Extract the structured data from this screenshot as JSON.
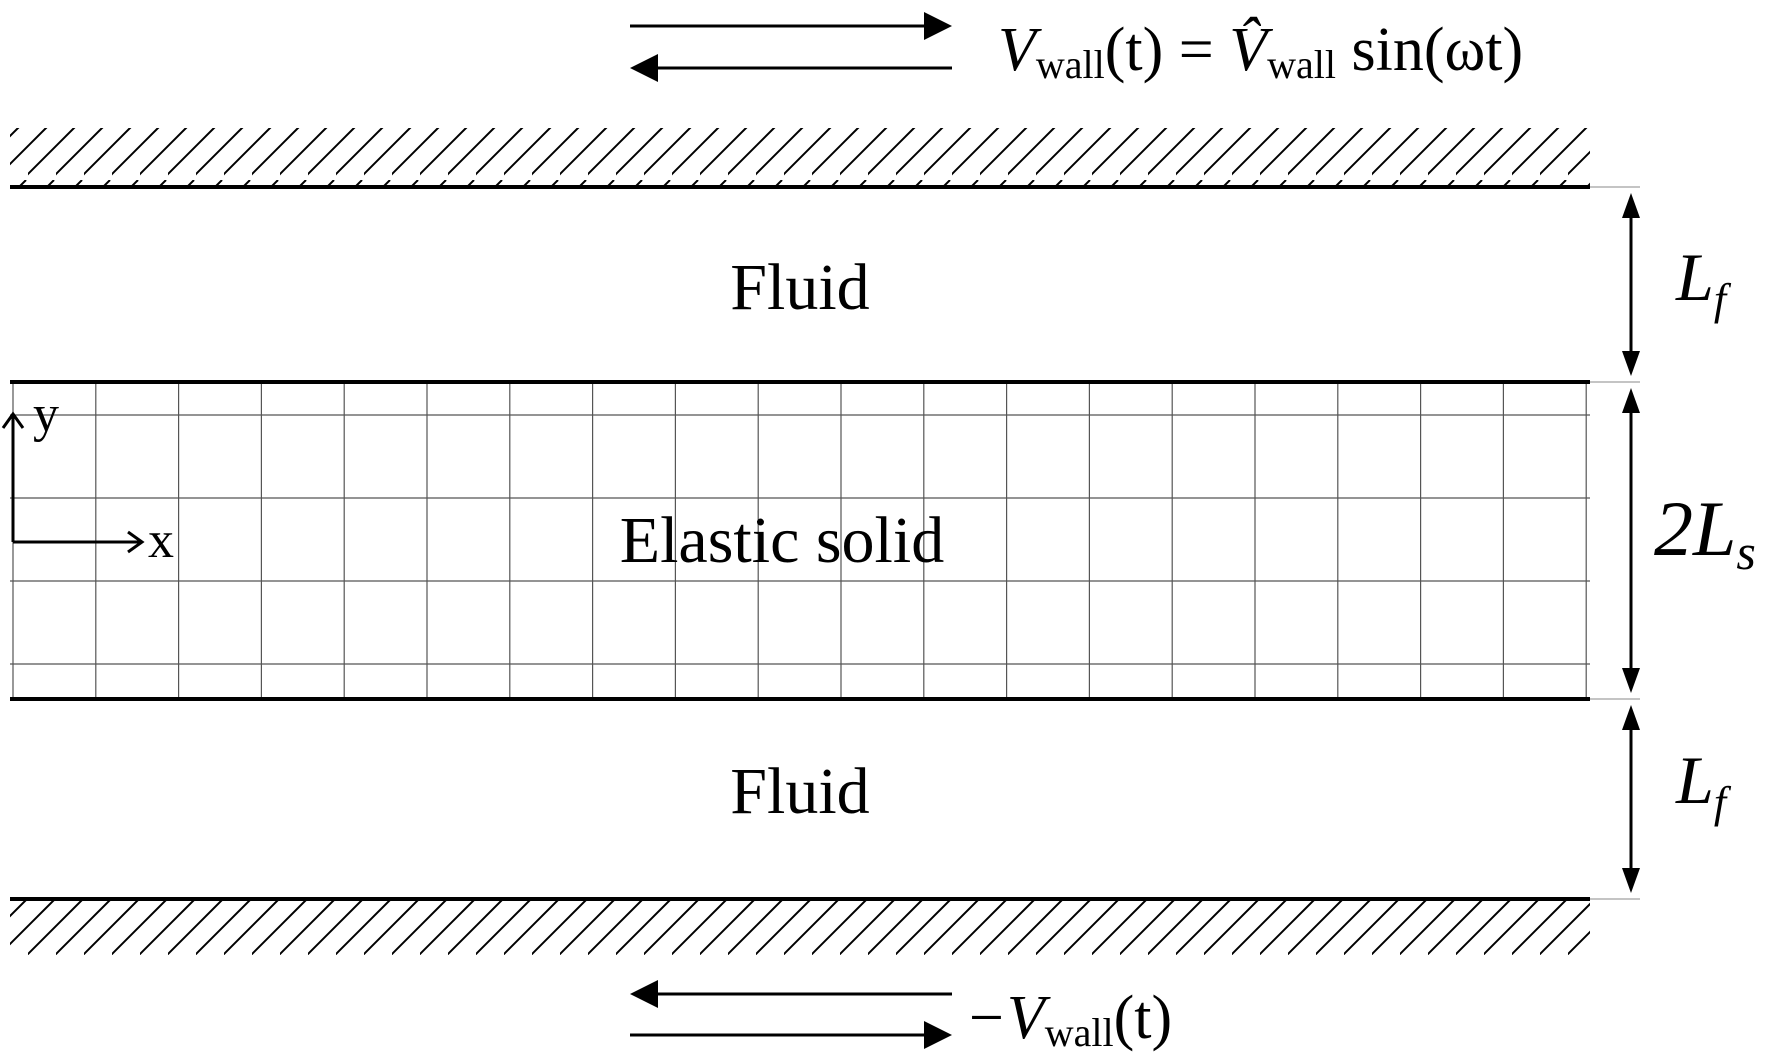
{
  "regions": {
    "fluid_top": "Fluid",
    "solid": "Elastic solid",
    "fluid_bottom": "Fluid"
  },
  "axes": {
    "x": "x",
    "y": "y"
  },
  "top_wall": {
    "v": "V",
    "sub": "wall",
    "t_expr": "(t) = ",
    "vhat": "V̂",
    "sub2": "wall",
    "rhs": " sin(ωt)"
  },
  "bottom_wall": {
    "prefix": "−V",
    "sub": "wall",
    "t_expr": "(t)"
  },
  "dimensions": {
    "fluid_top": {
      "main": "L",
      "sub": "f"
    },
    "solid": {
      "main": "2L",
      "sub": "s"
    },
    "fluid_bottom": {
      "main": "L",
      "sub": "f"
    }
  },
  "colors": {
    "line": "#000000",
    "grid": "#555555",
    "background": "#ffffff"
  }
}
